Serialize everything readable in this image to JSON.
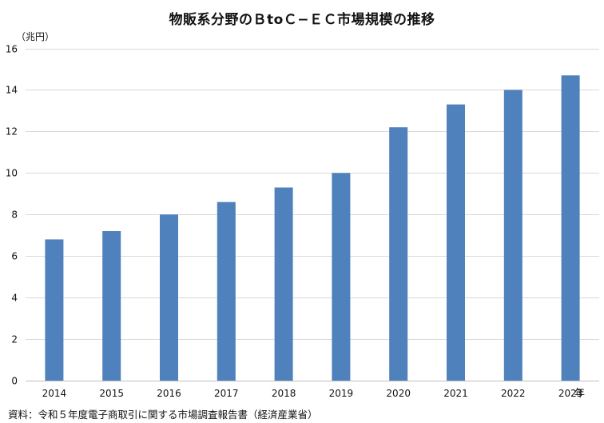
{
  "chart_data": {
    "type": "bar",
    "title": "物販系分野のＢtoＣ−ＥＣ市場規模の推移",
    "ylabel": "（兆円）",
    "xlabel_suffix": "年",
    "categories": [
      "2014",
      "2015",
      "2016",
      "2017",
      "2018",
      "2019",
      "2020",
      "2021",
      "2022",
      "2023"
    ],
    "values": [
      6.8,
      7.2,
      8.0,
      8.6,
      9.3,
      10.0,
      12.2,
      13.3,
      14.0,
      14.7
    ],
    "ylim": [
      0,
      16
    ],
    "yticks": [
      0,
      2,
      4,
      6,
      8,
      10,
      12,
      14,
      16
    ],
    "grid": true,
    "legend": "none",
    "colors": {
      "bar": "#4f81bd",
      "grid": "#d9d9d9",
      "axis": "#bfbfbf"
    }
  },
  "source": "資料：令和５年度電子商取引に関する市場調査報告書（経済産業省）"
}
